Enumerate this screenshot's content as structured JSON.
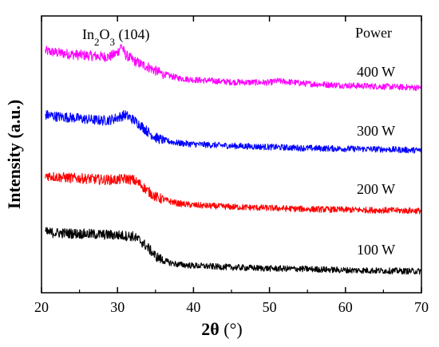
{
  "chart_data": {
    "type": "line",
    "xlabel_main": "2θ",
    "xlabel_unit": " (°)",
    "ylabel": "Intensity (a.u.)",
    "xlim": [
      20,
      70
    ],
    "xticks": [
      20,
      30,
      40,
      50,
      60,
      70
    ],
    "ytick_labels": false,
    "grid": false,
    "legend_title": "Power",
    "annotation": {
      "prefix": "In",
      "sub1": "2",
      "mid": "O",
      "sub2": "3",
      "suffix": " (104)",
      "x": 30.5
    },
    "series": [
      {
        "name": "400 W",
        "color": "#ff00ff",
        "x": [
          20.5,
          22,
          24,
          26,
          28,
          29,
          30,
          30.5,
          31,
          32,
          33,
          34,
          35,
          36,
          38,
          40,
          45,
          50,
          51,
          55,
          60,
          65,
          70
        ],
        "y": [
          3.68,
          3.65,
          3.62,
          3.6,
          3.58,
          3.58,
          3.65,
          3.78,
          3.62,
          3.52,
          3.45,
          3.4,
          3.33,
          3.27,
          3.2,
          3.17,
          3.13,
          3.12,
          3.15,
          3.1,
          3.07,
          3.05,
          3.03
        ]
      },
      {
        "name": "300 W",
        "color": "#0000ff",
        "x": [
          20.5,
          22,
          24,
          26,
          28,
          29,
          30,
          31,
          32,
          33,
          34,
          35,
          36,
          38,
          40,
          45,
          50,
          55,
          60,
          65,
          70
        ],
        "y": [
          2.55,
          2.52,
          2.5,
          2.47,
          2.45,
          2.46,
          2.5,
          2.55,
          2.47,
          2.37,
          2.25,
          2.15,
          2.1,
          2.05,
          2.03,
          2.0,
          1.98,
          1.96,
          1.95,
          1.94,
          1.92
        ]
      },
      {
        "name": "200 W",
        "color": "#ff0000",
        "x": [
          20.5,
          22,
          24,
          26,
          28,
          30,
          31,
          32,
          33,
          34,
          35,
          36,
          38,
          40,
          45,
          50,
          55,
          60,
          65,
          70
        ],
        "y": [
          1.48,
          1.45,
          1.43,
          1.42,
          1.4,
          1.4,
          1.42,
          1.4,
          1.32,
          1.2,
          1.1,
          1.05,
          0.98,
          0.95,
          0.92,
          0.9,
          0.88,
          0.87,
          0.86,
          0.85
        ]
      },
      {
        "name": "100 W",
        "color": "#000000",
        "x": [
          20.5,
          22,
          24,
          26,
          28,
          30,
          32,
          33,
          34,
          35,
          36,
          37,
          38,
          40,
          45,
          50,
          55,
          60,
          65,
          70
        ],
        "y": [
          0.47,
          0.46,
          0.45,
          0.44,
          0.43,
          0.42,
          0.4,
          0.32,
          0.2,
          0.05,
          -0.03,
          -0.07,
          -0.1,
          -0.12,
          -0.15,
          -0.17,
          -0.18,
          -0.2,
          -0.21,
          -0.22
        ]
      }
    ]
  }
}
